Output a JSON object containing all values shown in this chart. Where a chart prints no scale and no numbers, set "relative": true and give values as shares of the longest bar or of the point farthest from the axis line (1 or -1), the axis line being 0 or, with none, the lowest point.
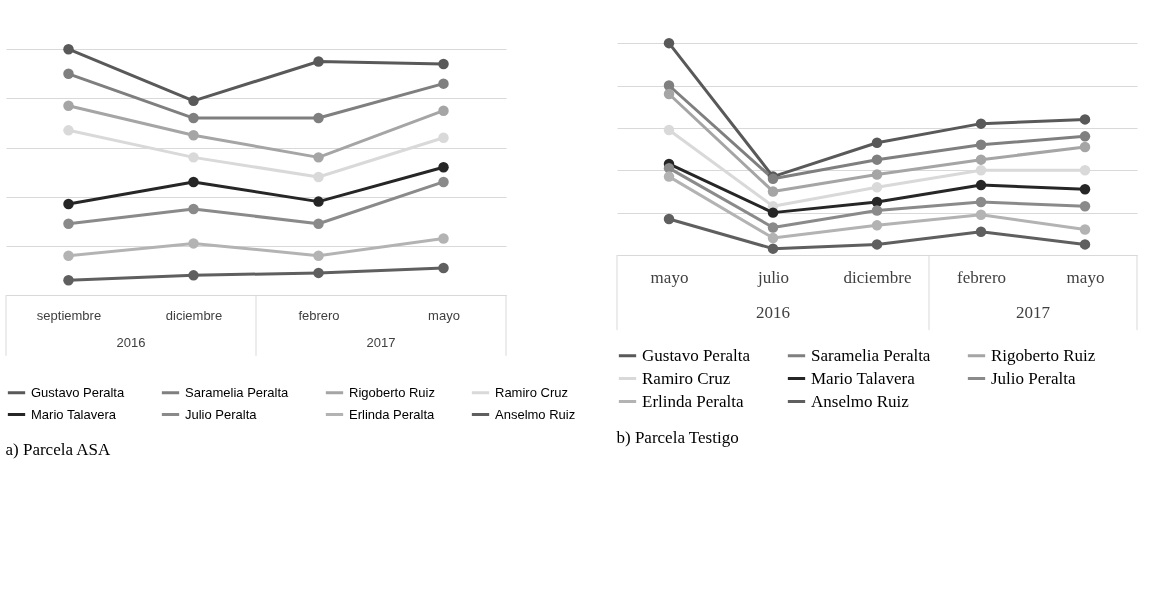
{
  "chart_data": [
    {
      "type": "line",
      "relative": true,
      "title": "a)    Parcela ASA",
      "categories": [
        "septiembre",
        "diciembre",
        "febrero",
        "mayo"
      ],
      "annotations": [
        "2016",
        "2017"
      ],
      "grid": "y",
      "legend": "bottom",
      "marker": "circle",
      "line_style": "solid",
      "series": [
        {
          "name": "Gustavo Peralta",
          "color": "#595959",
          "values": [
            1,
            0.79,
            0.95,
            0.94
          ]
        },
        {
          "name": "Saramelia Peralta",
          "color": "#7f7f7f",
          "values": [
            0.9,
            0.72,
            0.72,
            0.86
          ]
        },
        {
          "name": "Rigoberto Ruiz",
          "color": "#a5a5a5",
          "values": [
            0.77,
            0.65,
            0.56,
            0.75
          ]
        },
        {
          "name": "Ramiro Cruz",
          "color": "#d9d9d9",
          "values": [
            0.67,
            0.56,
            0.48,
            0.64
          ]
        },
        {
          "name": "Mario Talavera",
          "color": "#262626",
          "values": [
            0.37,
            0.46,
            0.38,
            0.52
          ]
        },
        {
          "name": "Julio Peralta",
          "color": "#8a8a8a",
          "values": [
            0.29,
            0.35,
            0.29,
            0.46
          ]
        },
        {
          "name": "Erlinda Peralta",
          "color": "#b3b3b3",
          "values": [
            0.16,
            0.21,
            0.16,
            0.23
          ]
        },
        {
          "name": "Anselmo Ruiz",
          "color": "#5f5f5f",
          "values": [
            0.06,
            0.08,
            0.09,
            0.11
          ]
        }
      ]
    },
    {
      "type": "line",
      "relative": true,
      "title": "b) Parcela Testigo",
      "categories": [
        "mayo",
        "julio",
        "diciembre",
        "febrero",
        "mayo"
      ],
      "annotations": [
        "2016",
        "2017"
      ],
      "grid": "y",
      "legend": "bottom",
      "marker": "circle",
      "line_style": "solid",
      "series": [
        {
          "name": "Gustavo Peralta",
          "color": "#595959",
          "values": [
            1,
            0.37,
            0.53,
            0.62,
            0.64
          ]
        },
        {
          "name": "Saramelia Peralta",
          "color": "#7f7f7f",
          "values": [
            0.8,
            0.36,
            0.45,
            0.52,
            0.56
          ]
        },
        {
          "name": "Rigoberto Ruiz",
          "color": "#a5a5a5",
          "values": [
            0.76,
            0.3,
            0.38,
            0.45,
            0.51
          ]
        },
        {
          "name": "Ramiro Cruz",
          "color": "#d9d9d9",
          "values": [
            0.59,
            0.23,
            0.32,
            0.4,
            0.4
          ]
        },
        {
          "name": "Mario Talavera",
          "color": "#262626",
          "values": [
            0.43,
            0.2,
            0.25,
            0.33,
            0.31
          ]
        },
        {
          "name": "Julio Peralta",
          "color": "#8a8a8a",
          "values": [
            0.41,
            0.13,
            0.21,
            0.25,
            0.23
          ]
        },
        {
          "name": "Erlinda Peralta",
          "color": "#b3b3b3",
          "values": [
            0.37,
            0.08,
            0.14,
            0.19,
            0.12
          ]
        },
        {
          "name": "Anselmo Ruiz",
          "color": "#5f5f5f",
          "values": [
            0.17,
            0.03,
            0.05,
            0.11,
            0.05
          ]
        }
      ]
    }
  ]
}
